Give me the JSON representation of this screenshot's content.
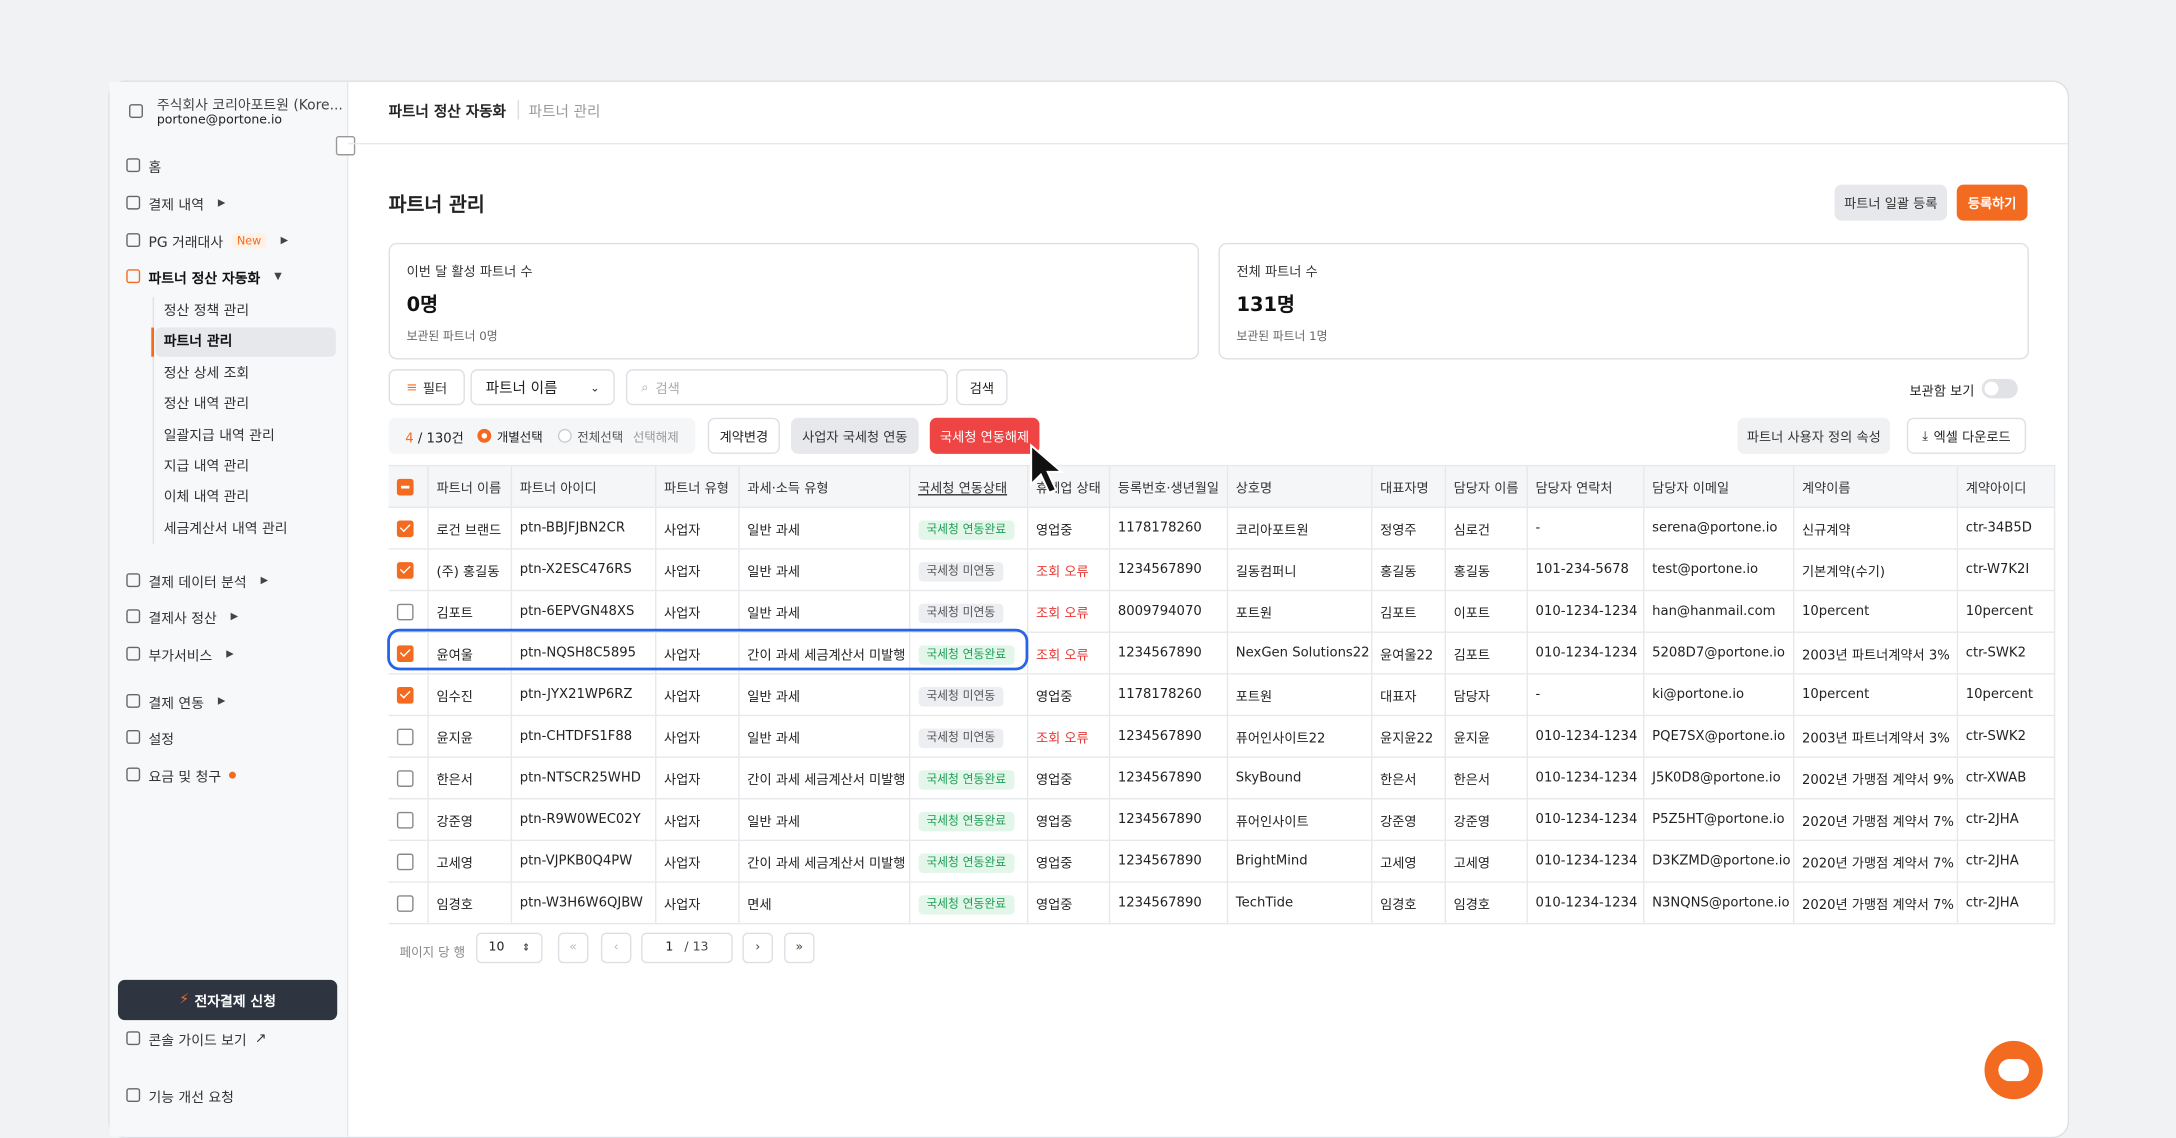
{
  "sidebar": {
    "company": "주식회사 코리아포트원 (Kore...",
    "email": "portone@portone.io",
    "menu": [
      {
        "label": "홈"
      },
      {
        "label": "결제 내역",
        "expandable": true
      },
      {
        "label": "PG 거래대사",
        "badge": "New",
        "expandable": true
      },
      {
        "label": "파트너 정산 자동화",
        "expandable": true,
        "active": true,
        "children": [
          {
            "label": "정산 정책 관리"
          },
          {
            "label": "파트너 관리",
            "selected": true
          },
          {
            "label": "정산 상세 조회"
          },
          {
            "label": "정산 내역 관리"
          },
          {
            "label": "일괄지급 내역 관리"
          },
          {
            "label": "지급 내역 관리"
          },
          {
            "label": "이체 내역 관리"
          },
          {
            "label": "세금계산서 내역 관리"
          }
        ]
      },
      {
        "label": "결제 데이터 분석",
        "expandable": true
      },
      {
        "label": "결제사 정산",
        "expandable": true
      },
      {
        "label": "부가서비스",
        "expandable": true
      },
      {
        "label": "결제 연동",
        "expandable": true
      },
      {
        "label": "설정"
      },
      {
        "label": "요금 및 청구",
        "dot": true
      }
    ],
    "apply_button": "전자결제 신청",
    "guide": "콘솔 가이드 보기",
    "feedback": "기능 개선 요청"
  },
  "breadcrumb": [
    "파트너 정산 자동화",
    "파트너 관리"
  ],
  "page_title": "파트너 관리",
  "buttons": {
    "bulk": "파트너 일괄 등록",
    "register": "등록하기"
  },
  "cards": [
    {
      "label": "이번 달 활성 파트너 수",
      "value": "0명",
      "note": "보관된 파트너 0명"
    },
    {
      "label": "전체 파트너 수",
      "value": "131명",
      "note": "보관된 파트너 1명"
    }
  ],
  "toolbar": {
    "filter": "필터",
    "select": "파트너 이름",
    "search_placeholder": "검색",
    "search_button": "검색",
    "archive_toggle": "보관함 보기"
  },
  "actions": {
    "count_selected": "4",
    "count_total": "/ 130건",
    "individual": "개별선택",
    "all": "전체선택",
    "deselect": "선택해제",
    "contract": "계약변경",
    "link": "사업자 국세청 연동",
    "unlink": "국세청 연동해제",
    "custom_attr": "파트너 사용자 정의 속성",
    "excel": "엑셀 다운로드"
  },
  "table": {
    "columns": [
      "파트너 이름",
      "파트너 아이디",
      "파트너 유형",
      "과세·소득 유형",
      "국세청 연동상태",
      "휴폐업 상태",
      "등록번호·생년월일",
      "상호명",
      "대표자명",
      "담당자 이름",
      "담당자 연락처",
      "담당자 이메일",
      "계약이름",
      "계약아이디"
    ],
    "highlighted_row": 3,
    "rows": [
      {
        "checked": true,
        "cells": [
          "로건 브랜드",
          "ptn-BBJFJBN2CR",
          "사업자",
          "일반 과세",
          "국세청 연동완료",
          "영업중",
          "1178178260",
          "코리아포트원",
          "정영주",
          "심로건",
          "-",
          "serena@portone.io",
          "신규계약",
          "ctr-34B5D"
        ]
      },
      {
        "checked": true,
        "cells": [
          "(주) 홍길동",
          "ptn-X2ESC476RS",
          "사업자",
          "일반 과세",
          "국세청 미연동",
          "조회 오류",
          "1234567890",
          "길동컴퍼니",
          "홍길동",
          "홍길동",
          "101-234-5678",
          "test@portone.io",
          "기본계약(수기)",
          "ctr-W7K2I"
        ]
      },
      {
        "checked": false,
        "cells": [
          "김포트",
          "ptn-6EPVGN48XS",
          "사업자",
          "일반 과세",
          "국세청 미연동",
          "조회 오류",
          "8009794070",
          "포트원",
          "김포트",
          "이포트",
          "010-1234-1234",
          "han@hanmail.com",
          "10percent",
          "10percent"
        ]
      },
      {
        "checked": true,
        "cells": [
          "윤여울",
          "ptn-NQSH8C5895",
          "사업자",
          "간이 과세 세금계산서 미발행",
          "국세청 연동완료",
          "조회 오류",
          "1234567890",
          "NexGen Solutions22",
          "윤여울22",
          "김포트",
          "010-1234-1234",
          "5208D7@portone.io",
          "2003년 파트너계약서 3%",
          "ctr-SWK2"
        ]
      },
      {
        "checked": true,
        "cells": [
          "임수진",
          "ptn-JYX21WP6RZ",
          "사업자",
          "일반 과세",
          "국세청 미연동",
          "영업중",
          "1178178260",
          "포트원",
          "대표자",
          "담당자",
          "-",
          "ki@portone.io",
          "10percent",
          "10percent"
        ]
      },
      {
        "checked": false,
        "cells": [
          "윤지윤",
          "ptn-CHTDFS1F88",
          "사업자",
          "일반 과세",
          "국세청 미연동",
          "조회 오류",
          "1234567890",
          "퓨어인사이트22",
          "윤지윤22",
          "윤지윤",
          "010-1234-1234",
          "PQE7SX@portone.io",
          "2003년 파트너계약서 3%",
          "ctr-SWK2"
        ]
      },
      {
        "checked": false,
        "cells": [
          "한은서",
          "ptn-NTSCR25WHD",
          "사업자",
          "간이 과세 세금계산서 미발행",
          "국세청 연동완료",
          "영업중",
          "1234567890",
          "SkyBound",
          "한은서",
          "한은서",
          "010-1234-1234",
          "J5K0D8@portone.io",
          "2002년 가맹점 계약서 9%",
          "ctr-XWAB"
        ]
      },
      {
        "checked": false,
        "cells": [
          "강준영",
          "ptn-R9W0WEC02Y",
          "사업자",
          "일반 과세",
          "국세청 연동완료",
          "영업중",
          "1234567890",
          "퓨어인사이트",
          "강준영",
          "강준영",
          "010-1234-1234",
          "P5Z5HT@portone.io",
          "2020년 가맹점 계약서 7%",
          "ctr-2JHA"
        ]
      },
      {
        "checked": false,
        "cells": [
          "고세영",
          "ptn-VJPKB0Q4PW",
          "사업자",
          "간이 과세 세금계산서 미발행",
          "국세청 연동완료",
          "영업중",
          "1234567890",
          "BrightMind",
          "고세영",
          "고세영",
          "010-1234-1234",
          "D3KZMD@portone.io",
          "2020년 가맹점 계약서 7%",
          "ctr-2JHA"
        ]
      },
      {
        "checked": false,
        "cells": [
          "임경호",
          "ptn-W3H6W6QJBW",
          "사업자",
          "면세",
          "국세청 연동완료",
          "영업중",
          "1234567890",
          "TechTide",
          "임경호",
          "임경호",
          "010-1234-1234",
          "N3NQNS@portone.io",
          "2020년 가맹점 계약서 7%",
          "ctr-2JHA"
        ]
      }
    ]
  },
  "pagination": {
    "per_page_label": "페이지 당 행",
    "per_page": "10",
    "page": "1",
    "total": "/ 13"
  }
}
